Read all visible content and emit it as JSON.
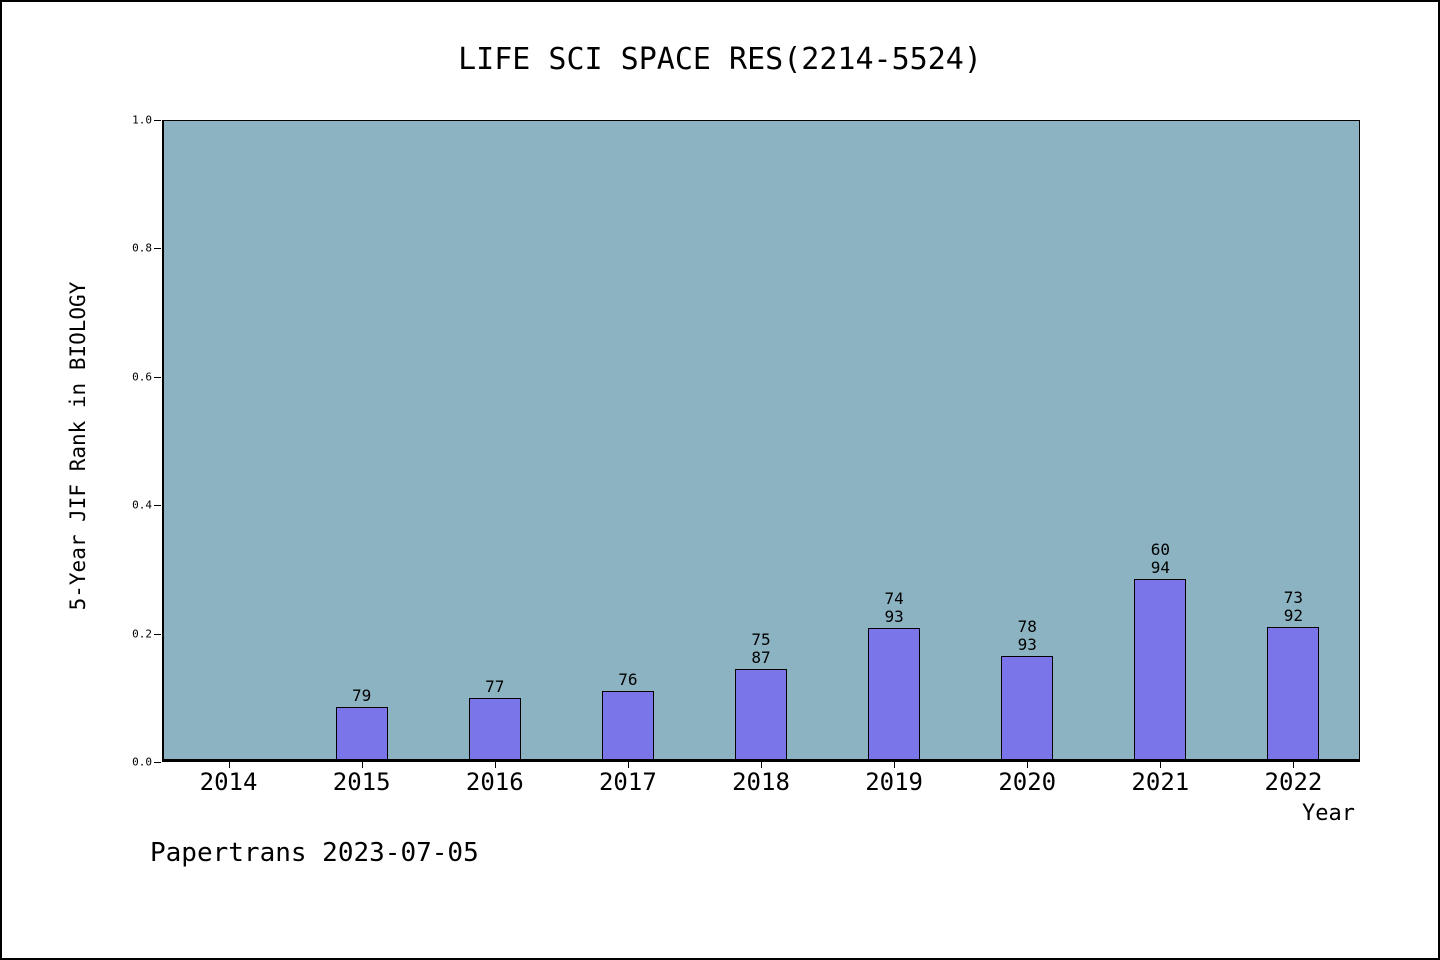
{
  "title": "LIFE SCI SPACE RES(2214-5524)",
  "footer": "Papertrans 2023-07-05",
  "chart_data": {
    "type": "bar",
    "title": "LIFE SCI SPACE RES(2214-5524)",
    "xlabel": "Year",
    "ylabel": "5-Year JIF Rank in BIOLOGY",
    "categories": [
      "2014",
      "2015",
      "2016",
      "2017",
      "2018",
      "2019",
      "2020",
      "2021",
      "2022"
    ],
    "values": [
      null,
      0.081,
      0.095,
      0.106,
      0.14,
      0.204,
      0.161,
      0.28,
      0.206
    ],
    "bar_labels": [
      [],
      [
        "79"
      ],
      [
        "77"
      ],
      [
        "76"
      ],
      [
        "75",
        "87"
      ],
      [
        "74",
        "93"
      ],
      [
        "78",
        "93"
      ],
      [
        "60",
        "94"
      ],
      [
        "73",
        "92"
      ]
    ],
    "ylim": [
      0.0,
      1.0
    ],
    "yticks": [
      0.0,
      0.2,
      0.4,
      0.6,
      0.8,
      1.0
    ],
    "grid": false,
    "legend": "none",
    "colors": {
      "plot_bg": "#8CB3C2",
      "bar_fill": "#7A75E8",
      "bar_edge": "#000000",
      "text": "#000000",
      "frame": "#000000"
    }
  }
}
